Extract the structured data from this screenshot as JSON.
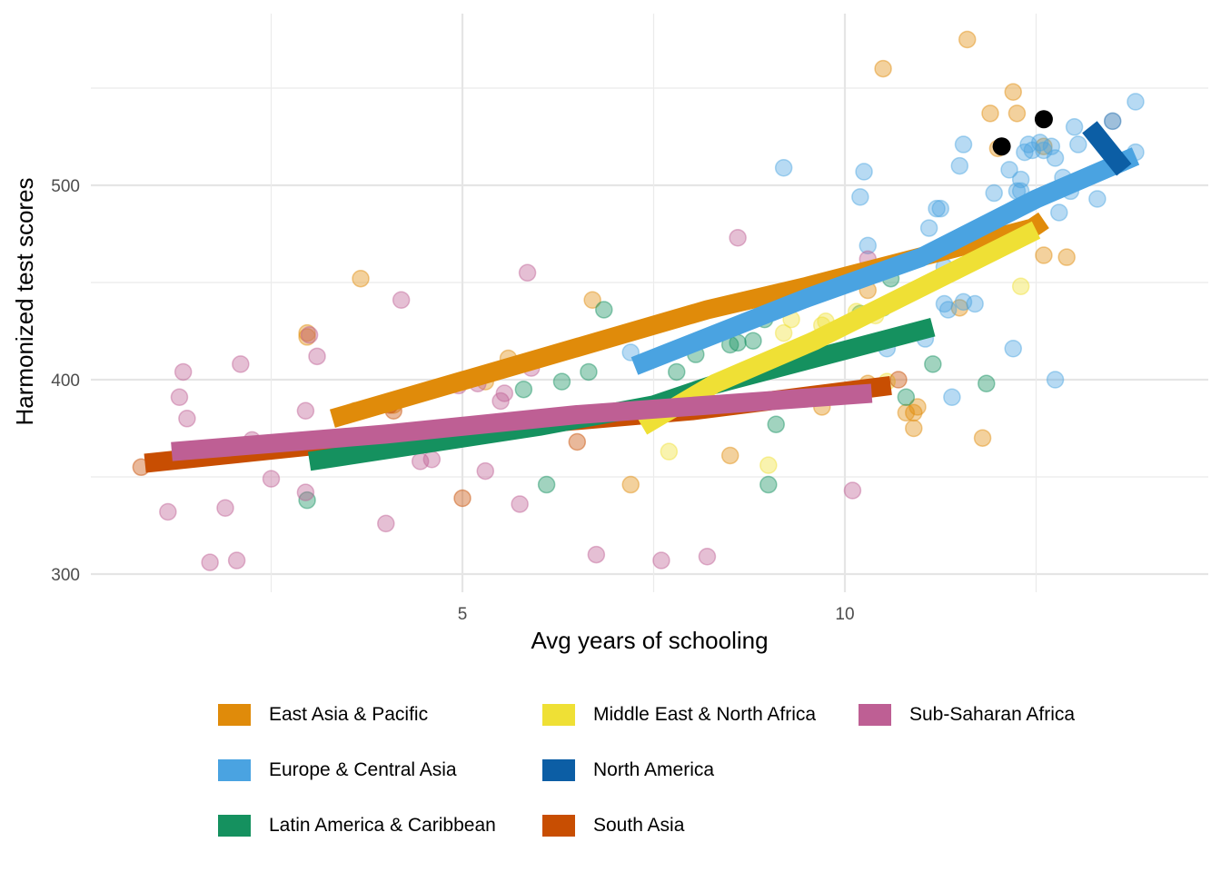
{
  "chart_data": {
    "type": "scatter",
    "title": "",
    "xlabel": "Avg years of schooling",
    "ylabel": "Harmonized test scores",
    "xlim": [
      0.15,
      14.75
    ],
    "ylim": [
      292,
      592
    ],
    "x_ticks": [
      5,
      10
    ],
    "x_tick_labels": [
      "5",
      "10"
    ],
    "x_minor_grid": [
      2.5,
      7.5,
      12.5
    ],
    "y_ticks": [
      300,
      400,
      500
    ],
    "y_tick_labels": [
      "300",
      "400",
      "500"
    ],
    "y_minor_grid": [
      350,
      450,
      550
    ],
    "grid": true,
    "legend_position": "bottom",
    "series": [
      {
        "name": "East Asia & Pacific",
        "color": "#E08B0A",
        "points": [
          [
            3.67,
            452
          ],
          [
            2.97,
            424
          ],
          [
            2.97,
            422
          ],
          [
            5.6,
            411
          ],
          [
            3.6,
            384
          ],
          [
            4.1,
            387
          ],
          [
            6.7,
            441
          ],
          [
            5.3,
            399
          ],
          [
            7.2,
            346
          ],
          [
            8.5,
            361
          ],
          [
            9.7,
            386
          ],
          [
            10.3,
            446
          ],
          [
            10.5,
            560
          ],
          [
            11.6,
            575
          ],
          [
            11.5,
            437
          ],
          [
            12.2,
            548
          ],
          [
            11.9,
            537
          ],
          [
            12.25,
            537
          ],
          [
            12.0,
            519
          ],
          [
            12.6,
            520
          ],
          [
            12.6,
            464
          ],
          [
            12.9,
            463
          ],
          [
            10.9,
            383
          ],
          [
            10.9,
            375
          ],
          [
            10.95,
            386
          ],
          [
            11.8,
            370
          ],
          [
            10.8,
            383
          ],
          [
            10.3,
            398
          ]
        ],
        "trend": [
          [
            3.3,
            380
          ],
          [
            8.2,
            436
          ],
          [
            9.5,
            448
          ],
          [
            12.45,
            478
          ],
          [
            12.6,
            482
          ]
        ]
      },
      {
        "name": "Europe & Central Asia",
        "color": "#4AA3E1",
        "points": [
          [
            7.2,
            414
          ],
          [
            9.2,
            509
          ],
          [
            10.2,
            494
          ],
          [
            10.25,
            507
          ],
          [
            10.3,
            469
          ],
          [
            10.55,
            416
          ],
          [
            11.05,
            421
          ],
          [
            11.1,
            478
          ],
          [
            11.2,
            488
          ],
          [
            11.25,
            488
          ],
          [
            11.3,
            458
          ],
          [
            11.35,
            436
          ],
          [
            11.4,
            391
          ],
          [
            11.5,
            510
          ],
          [
            11.55,
            521
          ],
          [
            11.55,
            440
          ],
          [
            11.7,
            439
          ],
          [
            11.95,
            496
          ],
          [
            12.15,
            508
          ],
          [
            12.2,
            416
          ],
          [
            12.3,
            503
          ],
          [
            12.3,
            497
          ],
          [
            12.35,
            517
          ],
          [
            12.4,
            521
          ],
          [
            12.45,
            518
          ],
          [
            12.55,
            522
          ],
          [
            12.6,
            518
          ],
          [
            12.7,
            520
          ],
          [
            12.75,
            514
          ],
          [
            12.85,
            504
          ],
          [
            12.75,
            400
          ],
          [
            12.8,
            486
          ],
          [
            13.0,
            530
          ],
          [
            13.05,
            521
          ],
          [
            13.3,
            493
          ],
          [
            13.8,
            543
          ],
          [
            13.8,
            517
          ],
          [
            12.95,
            497
          ],
          [
            12.25,
            497
          ],
          [
            11.3,
            439
          ]
        ],
        "trend": [
          [
            7.25,
            407
          ],
          [
            9.5,
            442
          ],
          [
            11.0,
            463
          ],
          [
            12.5,
            493
          ],
          [
            13.8,
            515
          ]
        ]
      },
      {
        "name": "Latin America & Caribbean",
        "color": "#15915F",
        "points": [
          [
            2.97,
            338
          ],
          [
            5.8,
            395
          ],
          [
            6.3,
            399
          ],
          [
            6.65,
            404
          ],
          [
            6.85,
            436
          ],
          [
            7.8,
            404
          ],
          [
            8.05,
            413
          ],
          [
            8.5,
            418
          ],
          [
            8.6,
            419
          ],
          [
            8.8,
            420
          ],
          [
            8.95,
            431
          ],
          [
            9.1,
            377
          ],
          [
            9.0,
            346
          ],
          [
            6.1,
            346
          ],
          [
            10.6,
            452
          ],
          [
            10.5,
            437
          ],
          [
            10.2,
            434
          ],
          [
            10.8,
            391
          ],
          [
            11.15,
            408
          ],
          [
            11.85,
            398
          ]
        ],
        "trend": [
          [
            3.0,
            358
          ],
          [
            6.0,
            376
          ],
          [
            7.5,
            387
          ],
          [
            8.25,
            397
          ],
          [
            11.15,
            427
          ]
        ]
      },
      {
        "name": "Middle East & North Africa",
        "color": "#EFE035",
        "points": [
          [
            7.7,
            363
          ],
          [
            9.0,
            356
          ],
          [
            9.75,
            430
          ],
          [
            9.7,
            428
          ],
          [
            10.15,
            435
          ],
          [
            10.4,
            433
          ],
          [
            10.55,
            399
          ],
          [
            12.3,
            448
          ],
          [
            9.2,
            424
          ],
          [
            9.3,
            431
          ]
        ],
        "trend": [
          [
            7.35,
            376
          ],
          [
            8.3,
            398
          ],
          [
            9.6,
            420
          ],
          [
            12.5,
            477
          ]
        ]
      },
      {
        "name": "North America",
        "color": "#0C5EA5",
        "points": [
          [
            13.5,
            533
          ],
          [
            13.4,
            520
          ]
        ],
        "trend": [
          [
            13.2,
            530
          ],
          [
            13.65,
            508
          ]
        ]
      },
      {
        "name": "South Asia",
        "color": "#C84E02",
        "points": [
          [
            0.8,
            355
          ],
          [
            4.05,
            387
          ],
          [
            5.0,
            339
          ],
          [
            6.5,
            368
          ],
          [
            10.7,
            400
          ],
          [
            4.1,
            384
          ]
        ],
        "trend": [
          [
            0.85,
            357
          ],
          [
            5.0,
            374
          ],
          [
            8.0,
            384
          ],
          [
            10.6,
            397
          ]
        ]
      },
      {
        "name": "Sub-Saharan Africa",
        "color": "#BE5F94",
        "points": [
          [
            1.15,
            332
          ],
          [
            1.35,
            404
          ],
          [
            1.3,
            391
          ],
          [
            1.4,
            380
          ],
          [
            1.7,
            306
          ],
          [
            1.9,
            334
          ],
          [
            2.1,
            408
          ],
          [
            2.25,
            369
          ],
          [
            2.5,
            349
          ],
          [
            2.05,
            307
          ],
          [
            2.95,
            384
          ],
          [
            2.95,
            342
          ],
          [
            3.0,
            423
          ],
          [
            3.1,
            412
          ],
          [
            3.55,
            369
          ],
          [
            4.0,
            326
          ],
          [
            4.2,
            441
          ],
          [
            4.6,
            359
          ],
          [
            4.45,
            358
          ],
          [
            4.95,
            397
          ],
          [
            5.2,
            398
          ],
          [
            5.3,
            353
          ],
          [
            5.5,
            389
          ],
          [
            5.55,
            393
          ],
          [
            5.75,
            336
          ],
          [
            5.85,
            455
          ],
          [
            5.9,
            406
          ],
          [
            6.75,
            310
          ],
          [
            7.6,
            307
          ],
          [
            8.2,
            309
          ],
          [
            8.6,
            473
          ],
          [
            10.1,
            343
          ],
          [
            10.3,
            462
          ]
        ],
        "trend": [
          [
            1.2,
            363
          ],
          [
            4.0,
            372
          ],
          [
            6.5,
            382
          ],
          [
            10.35,
            393
          ]
        ]
      }
    ],
    "highlight_points": {
      "color": "#000000",
      "points": [
        [
          12.05,
          520
        ],
        [
          12.6,
          534
        ]
      ]
    }
  },
  "legend": {
    "items": [
      {
        "label": "East Asia & Pacific",
        "color": "#E08B0A"
      },
      {
        "label": "Europe & Central Asia",
        "color": "#4AA3E1"
      },
      {
        "label": "Latin America & Caribbean",
        "color": "#15915F"
      },
      {
        "label": "Middle East & North Africa",
        "color": "#EFE035"
      },
      {
        "label": "North America",
        "color": "#0C5EA5"
      },
      {
        "label": "South Asia",
        "color": "#C84E02"
      },
      {
        "label": "Sub-Saharan Africa",
        "color": "#BE5F94"
      }
    ]
  }
}
